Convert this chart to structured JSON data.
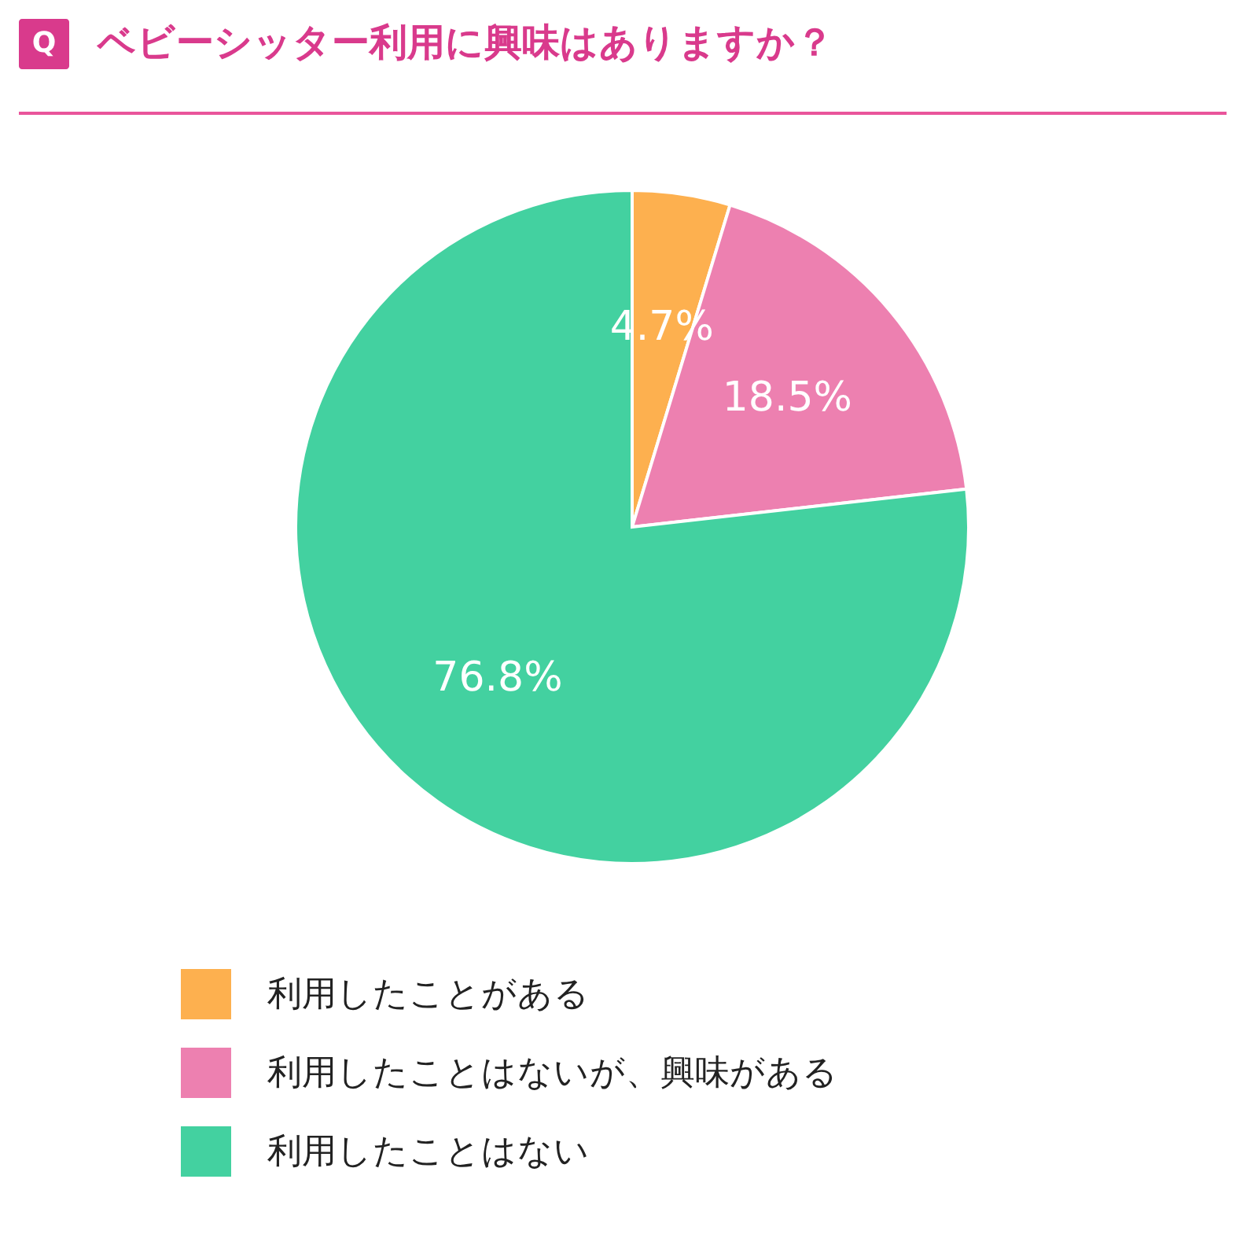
{
  "chart_data": {
    "type": "pie",
    "title": "ベビーシッター利用に興味はありますか？",
    "annotations": [
      "Q"
    ],
    "categories": [
      "利用したことがある",
      "利用したことはないが、興味がある",
      "利用したことはない"
    ],
    "values": [
      4.7,
      18.5,
      76.8
    ],
    "colors": [
      "#fdb04f",
      "#ed80b0",
      "#43d1a0"
    ],
    "value_labels": [
      "4.7%",
      "18.5%",
      "76.8%"
    ],
    "legend": "bottom"
  }
}
